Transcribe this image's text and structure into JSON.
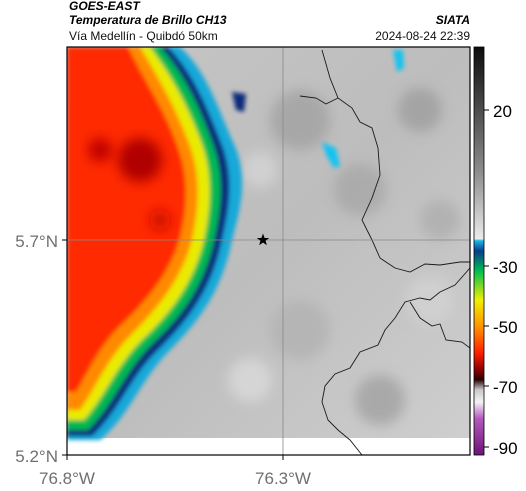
{
  "header": {
    "satellite": "GOES-EAST",
    "product": "Temperatura de Brillo CH13",
    "route": "Vía Medellín - Quibdó 50km",
    "agency": "SIATA",
    "datetime": "2024-08-24 22:39"
  },
  "map": {
    "lat_ticks": [
      "5.7°N",
      "5.2°N"
    ],
    "lon_ticks": [
      "76.8°W",
      "76.3°W"
    ],
    "marker": "star"
  },
  "colorbar": {
    "tick_labels": [
      "20",
      "-30",
      "-50",
      "-70",
      "-90"
    ],
    "scale_values": [
      20,
      -30,
      -50,
      -70,
      -90
    ]
  },
  "colors": {
    "cold_core": "#ff2a00",
    "frame": "#000000"
  }
}
